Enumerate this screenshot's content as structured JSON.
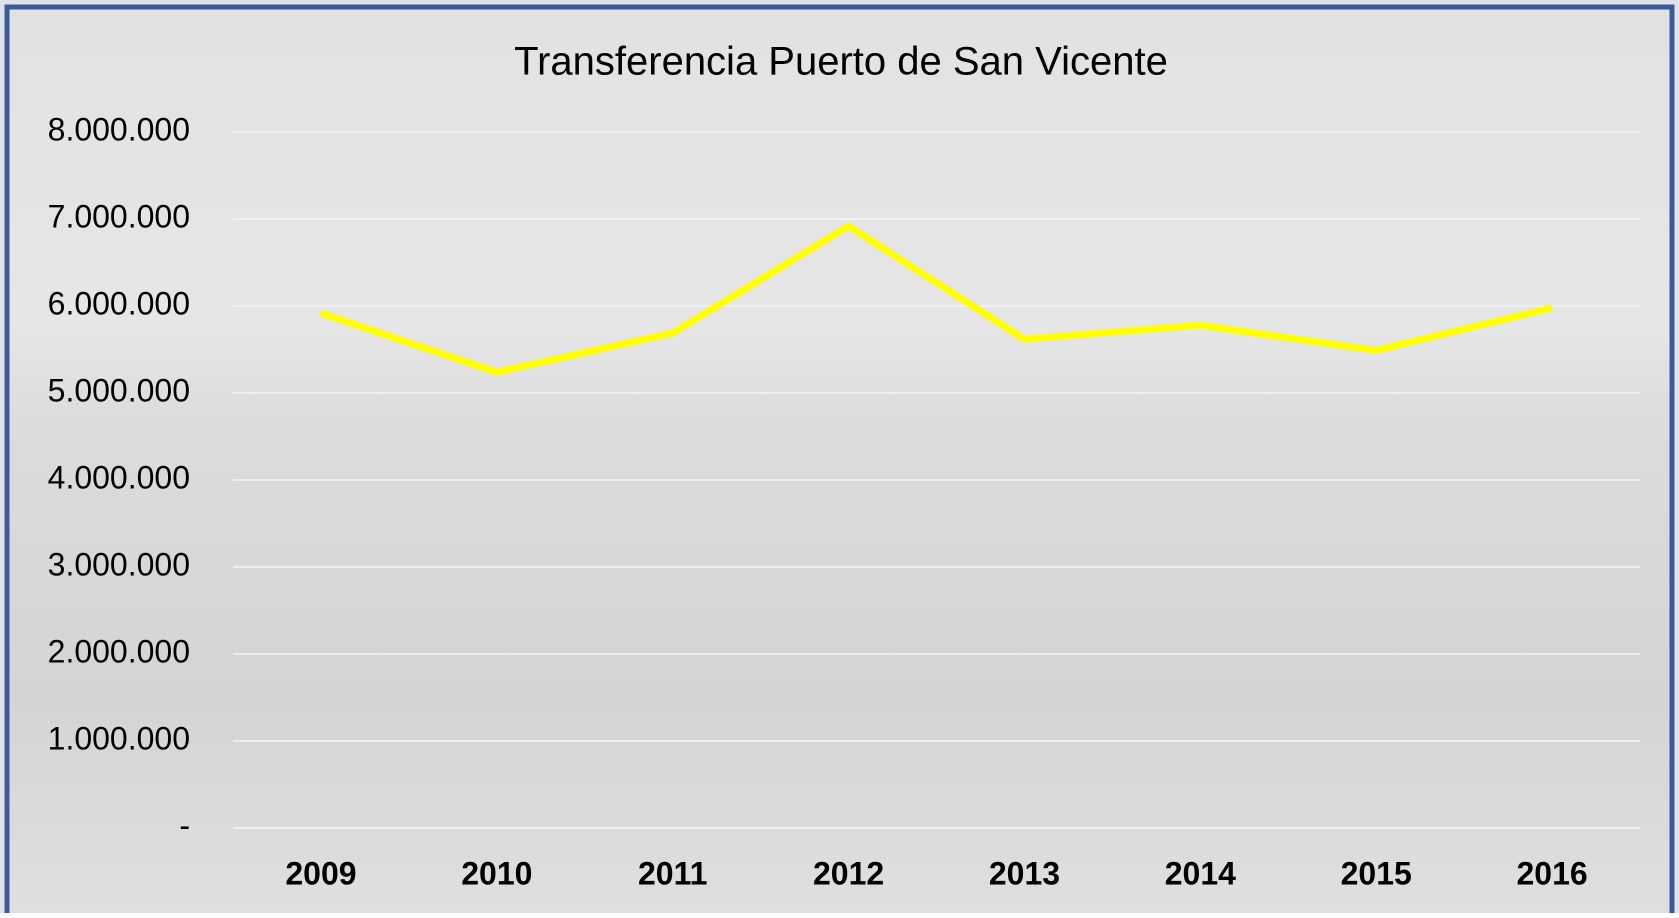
{
  "chart_data": {
    "type": "line",
    "title": "Transferencia Puerto de San Vicente",
    "categories": [
      "2009",
      "2010",
      "2011",
      "2012",
      "2013",
      "2014",
      "2015",
      "2016"
    ],
    "values": [
      5920000,
      5240000,
      5690000,
      6920000,
      5620000,
      5780000,
      5490000,
      5980000
    ],
    "color": "#ffff00",
    "ylim": [
      0,
      8000000
    ],
    "yticks": [
      {
        "value": 0,
        "label": "-"
      },
      {
        "value": 1000000,
        "label": "1.000.000"
      },
      {
        "value": 2000000,
        "label": "2.000.000"
      },
      {
        "value": 3000000,
        "label": "3.000.000"
      },
      {
        "value": 4000000,
        "label": "4.000.000"
      },
      {
        "value": 5000000,
        "label": "5.000.000"
      },
      {
        "value": 6000000,
        "label": "6.000.000"
      },
      {
        "value": 7000000,
        "label": "7.000.000"
      },
      {
        "value": 8000000,
        "label": "8.000.000"
      }
    ],
    "grid": true
  }
}
